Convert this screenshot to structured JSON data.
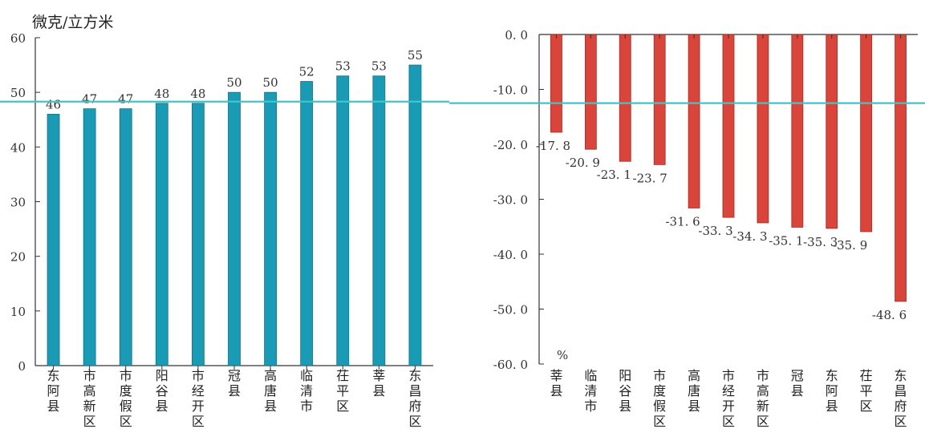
{
  "chart_data": [
    {
      "type": "bar",
      "unit_label": "微克/立方米",
      "categories": [
        "东阿县",
        "市高新区",
        "市度假区",
        "阳谷县",
        "市经开区",
        "冠县",
        "高唐县",
        "临清市",
        "茌平区",
        "莘县",
        "东昌府区"
      ],
      "values": [
        46,
        47,
        47,
        48,
        48,
        50,
        50,
        52,
        53,
        53,
        55
      ],
      "value_labels": [
        "46",
        "47",
        "47",
        "48",
        "48",
        "50",
        "50",
        "52",
        "53",
        "53",
        "55"
      ],
      "yticks": [
        "0",
        "10",
        "20",
        "30",
        "40",
        "50",
        "60"
      ],
      "ylim": [
        0,
        60
      ],
      "reference_line": 48.3,
      "bar_color": "#1a9bb5",
      "line_color": "#3ec7c9"
    },
    {
      "type": "bar",
      "unit_label": "%",
      "categories": [
        "莘县",
        "临清市",
        "阳谷县",
        "市度假区",
        "高唐县",
        "市经开区",
        "市高新区",
        "冠县",
        "东阿县",
        "茌平区",
        "东昌府区"
      ],
      "values": [
        -17.8,
        -20.9,
        -23.1,
        -23.7,
        -31.6,
        -33.3,
        -34.3,
        -35.1,
        -35.3,
        -35.9,
        -48.6
      ],
      "value_labels": [
        "-17. 8",
        "-20. 9",
        "-23. 1",
        "-23. 7",
        "-31. 6",
        "-33. 3",
        "-34. 3",
        "-35. 1",
        "-35. 3",
        "-35. 9",
        "-48. 6"
      ],
      "yticks": [
        "0. 0",
        "-10. 0",
        "-20. 0",
        "-30. 0",
        "-40. 0",
        "-50. 0",
        "-60. 0"
      ],
      "ylim": [
        -60,
        0
      ],
      "reference_line": -12.5,
      "bar_color": "#d9443b",
      "line_color": "#3ec7c9"
    }
  ]
}
